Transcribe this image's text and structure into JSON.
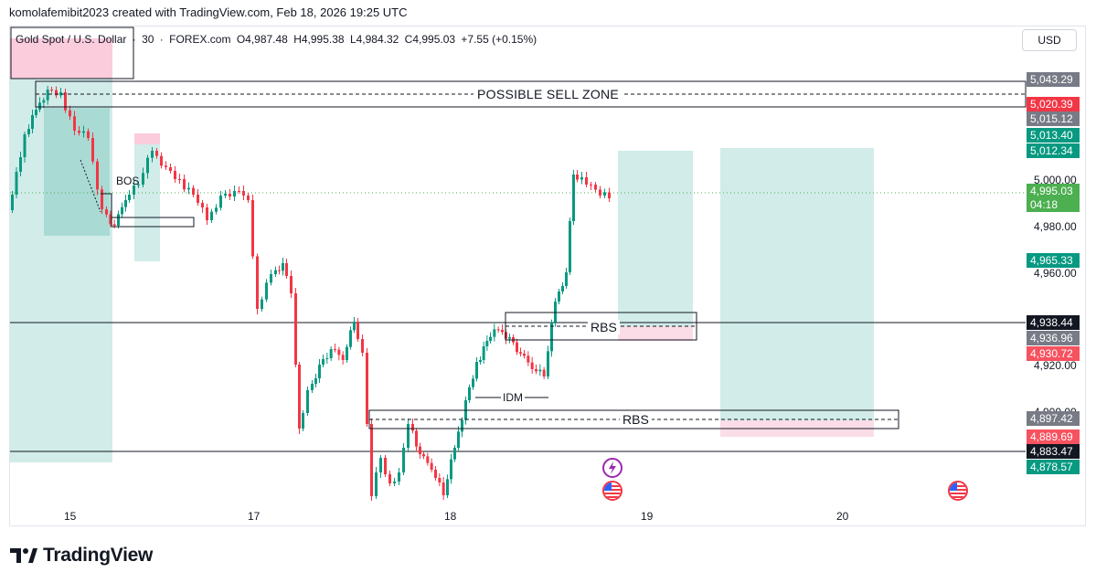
{
  "header": {
    "text": "komolafemibit2023 created with TradingView.com, Feb 18, 2026 19:25 UTC"
  },
  "symbol": {
    "name": "Gold Spot / U.S. Dollar",
    "interval": "30",
    "exchange": "FOREX.com",
    "open": "O4,987.48",
    "high": "H4,995.38",
    "low": "L4,984.32",
    "close": "C4,995.03",
    "change": "+7.55 (+0.15%)"
  },
  "currency_button": "USD",
  "annotations": {
    "sell_zone": "POSSIBLE SELL ZONE",
    "bos": "BOS",
    "rbs_upper": "RBS",
    "rbs_lower": "RBS",
    "idm": "IDM"
  },
  "price_axis": {
    "ticks": [
      "5,000.00",
      "4,980.00",
      "4,960.00",
      "4,920.00",
      "4,900.00"
    ],
    "tags": [
      {
        "value": "5,043.29",
        "color": "#787b86"
      },
      {
        "value": "5,020.39",
        "color": "#f23645"
      },
      {
        "value": "5,015.12",
        "color": "#787b86"
      },
      {
        "value": "5,013.40",
        "color": "#089981"
      },
      {
        "value": "5,012.34",
        "color": "#089981"
      },
      {
        "value": "4,995.03",
        "color": "#4caf50",
        "timer": "04:18"
      },
      {
        "value": "4,965.33",
        "color": "#089981"
      },
      {
        "value": "4,938.44",
        "color": "#131722"
      },
      {
        "value": "4,936.96",
        "color": "#787b86"
      },
      {
        "value": "4,930.72",
        "color": "#f7525f"
      },
      {
        "value": "4,897.42",
        "color": "#787b86"
      },
      {
        "value": "4,889.69",
        "color": "#f7525f"
      },
      {
        "value": "4,883.47",
        "color": "#131722"
      },
      {
        "value": "4,878.57",
        "color": "#089981"
      }
    ]
  },
  "time_axis": [
    "15",
    "17",
    "18",
    "19",
    "20"
  ],
  "colors": {
    "up": "#089981",
    "down": "#f23645",
    "zone_green": "#b2dfdb",
    "zone_red": "#f8bbd0"
  },
  "events": [
    "lightning-event-icon",
    "us-flag-event-icon",
    "us-flag-event-icon"
  ],
  "brand": "TradingView"
}
